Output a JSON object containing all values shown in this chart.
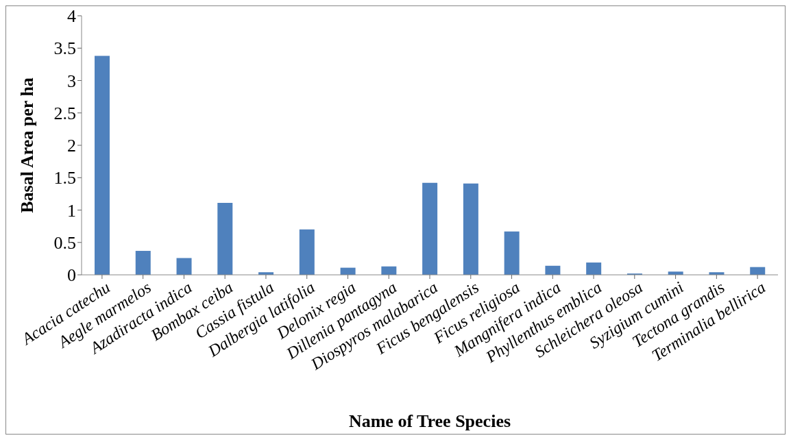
{
  "chart_data": {
    "type": "bar",
    "xlabel": "Name of Tree Species",
    "ylabel": "Basal Area per ha",
    "categories": [
      "Acacia catechu",
      "Aegle marmelos",
      "Azadiracta indica",
      "Bombax ceiba",
      "Cassia fistula",
      "Dalbergia latifolia",
      "Delonix regia",
      "Dillenia pantagyna",
      "Diospyros malabarica",
      "Ficus bengalensis",
      "Ficus religiosa",
      "Mangnifera indica",
      "Phyllenthus emblica",
      "Schleichera oleosa",
      "Syzigium cumini",
      "Tectona grandis",
      "Terminalia bellirica"
    ],
    "values": [
      3.38,
      0.37,
      0.26,
      1.11,
      0.04,
      0.7,
      0.11,
      0.13,
      1.42,
      1.41,
      0.67,
      0.14,
      0.19,
      0.02,
      0.05,
      0.04,
      0.12
    ],
    "color": "#4f81bd",
    "ylim": [
      0,
      4
    ],
    "yticks": [
      0,
      0.5,
      1,
      1.5,
      2,
      2.5,
      3,
      3.5,
      4
    ],
    "grid": false
  }
}
